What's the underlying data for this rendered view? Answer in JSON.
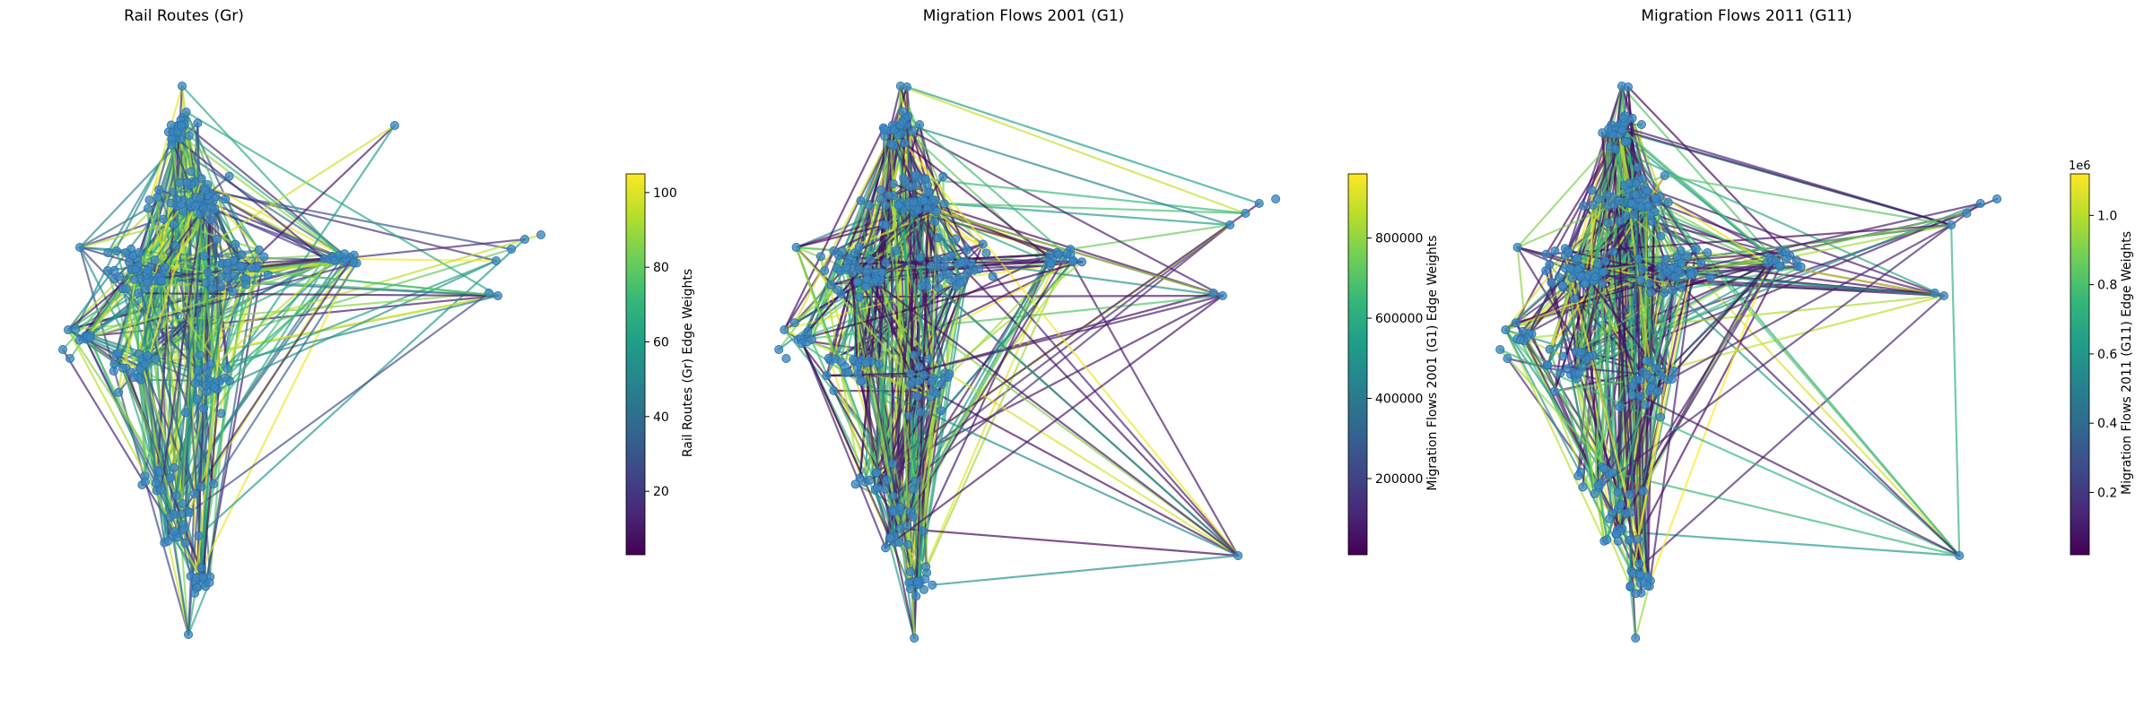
{
  "figure": {
    "panels": [
      {
        "id": "gr",
        "title": "Rail Routes (Gr)",
        "colorbar": {
          "label": "Rail Routes (Gr) Edge Weights",
          "ticks": [
            "20",
            "40",
            "60",
            "80",
            "100"
          ],
          "tick_values": [
            20,
            40,
            60,
            80,
            100
          ],
          "vmin": 3,
          "vmax": 105,
          "scale_label": ""
        },
        "edge_count": 420,
        "seed": 17
      },
      {
        "id": "g1",
        "title": "Migration Flows 2001 (G1)",
        "colorbar": {
          "label": "Migration Flows 2001 (G1) Edge Weights",
          "ticks": [
            "200000",
            "400000",
            "600000",
            "800000"
          ],
          "tick_values": [
            200000,
            400000,
            600000,
            800000
          ],
          "vmin": 10000,
          "vmax": 960000,
          "scale_label": ""
        },
        "edge_count": 460,
        "seed": 43
      },
      {
        "id": "g11",
        "title": "Migration Flows 2011 (G11)",
        "colorbar": {
          "label": "Migration Flows 2011 (G11) Edge Weights",
          "ticks": [
            "0.2",
            "0.4",
            "0.6",
            "0.8",
            "1.0"
          ],
          "tick_values": [
            0.2,
            0.4,
            0.6,
            0.8,
            1.0
          ],
          "vmin": 0.02,
          "vmax": 1.12,
          "scale_label": "1e6"
        },
        "edge_count": 480,
        "seed": 91
      }
    ],
    "colormap": "viridis",
    "node_color": "#3b87c0"
  }
}
